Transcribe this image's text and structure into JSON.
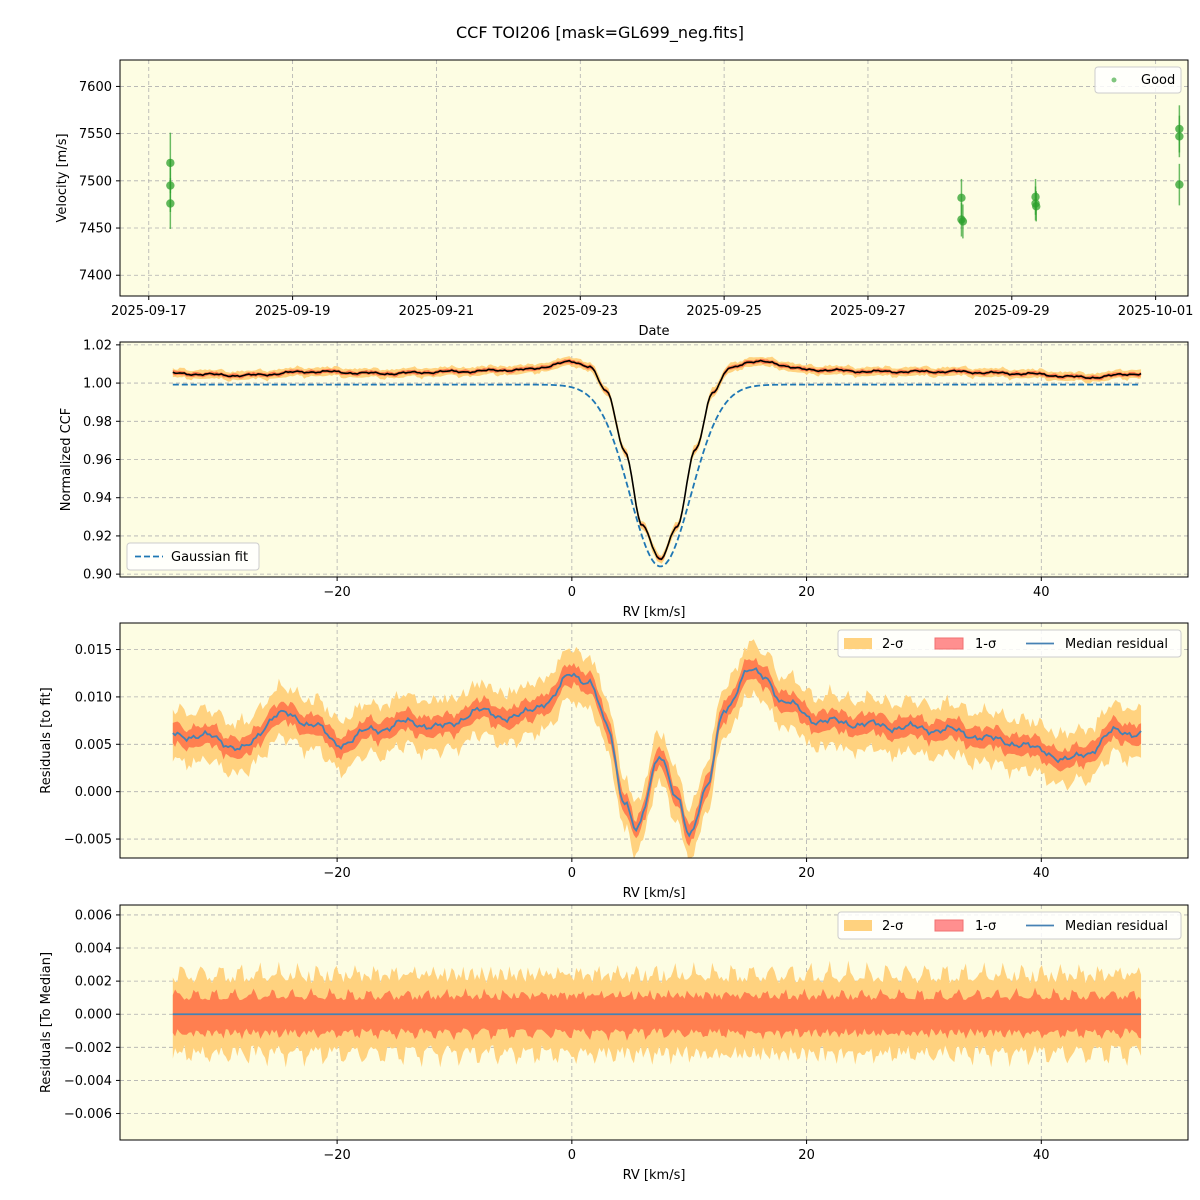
{
  "figure": {
    "title": "CCF TOI206 [mask=GL699_neg.fits]",
    "background": "#ffffff",
    "axes_facecolor": "#fdfde3"
  },
  "chart_data": [
    {
      "type": "scatter",
      "xlabel": "Date",
      "ylabel": "Velocity [m/s]",
      "x_ticks": [
        "2025-09-17",
        "2025-09-19",
        "2025-09-21",
        "2025-09-23",
        "2025-09-25",
        "2025-09-27",
        "2025-09-29",
        "2025-10-01"
      ],
      "xlim": [
        "2025-09-16.6",
        "2025-10-01.45"
      ],
      "ylim": [
        7378,
        7628
      ],
      "y_ticks": [
        7400,
        7450,
        7500,
        7550,
        7600
      ],
      "grid": true,
      "legend": {
        "position": "top-right",
        "entries": [
          "Good"
        ]
      },
      "series": [
        {
          "name": "Good",
          "color": "#2ca02c",
          "points": [
            {
              "x": "2025-09-17.30",
              "y": 7519,
              "err": 32
            },
            {
              "x": "2025-09-17.30",
              "y": 7495,
              "err": 28
            },
            {
              "x": "2025-09-17.30",
              "y": 7476,
              "err": 27
            },
            {
              "x": "2025-09-28.30",
              "y": 7482,
              "err": 20
            },
            {
              "x": "2025-09-28.30",
              "y": 7459,
              "err": 18
            },
            {
              "x": "2025-09-28.32",
              "y": 7457,
              "err": 18
            },
            {
              "x": "2025-09-29.33",
              "y": 7483,
              "err": 19
            },
            {
              "x": "2025-09-29.33",
              "y": 7476,
              "err": 18
            },
            {
              "x": "2025-09-29.34",
              "y": 7473,
              "err": 16
            },
            {
              "x": "2025-10-01.33",
              "y": 7555,
              "err": 25
            },
            {
              "x": "2025-10-01.33",
              "y": 7547,
              "err": 22
            },
            {
              "x": "2025-10-01.33",
              "y": 7496,
              "err": 22
            }
          ]
        }
      ]
    },
    {
      "type": "line",
      "xlabel": "RV [km/s]",
      "ylabel": "Normalized CCF",
      "xlim": [
        -38.5,
        52.5
      ],
      "ylim": [
        0.8985,
        1.0215
      ],
      "x_ticks": [
        -20,
        0,
        20,
        40
      ],
      "y_ticks": [
        0.9,
        0.92,
        0.94,
        0.96,
        0.98,
        1.0,
        1.02
      ],
      "y_tick_labels": [
        "0.90",
        "0.92",
        "0.94",
        "0.96",
        "0.98",
        "1.00",
        "1.02"
      ],
      "grid": true,
      "legend": {
        "position": "bottom-left",
        "entries": [
          "Gaussian fit"
        ]
      },
      "rv_range": [
        -34.0,
        48.5
      ],
      "gaussian_fit": {
        "baseline": 0.9992,
        "depth": 0.0952,
        "center": 7.55,
        "sigma": 2.6,
        "color": "#1f77b4"
      },
      "ccf_profile": {
        "x": [
          -34,
          -28,
          -22,
          -16,
          -10,
          -4,
          0,
          1.5,
          3,
          4.5,
          6,
          7.5,
          9,
          10.5,
          12,
          13.5,
          15,
          16.5,
          20,
          26,
          32,
          38,
          44,
          48.5
        ],
        "y": [
          1.005,
          1.004,
          1.006,
          1.005,
          1.006,
          1.007,
          1.011,
          1.009,
          0.995,
          0.965,
          0.925,
          0.908,
          0.925,
          0.965,
          0.995,
          1.008,
          1.011,
          1.011,
          1.007,
          1.006,
          1.006,
          1.005,
          1.003,
          1.005
        ],
        "color": "#000000"
      },
      "band_1sigma_halfwidth": 0.0012,
      "band_2sigma_halfwidth": 0.0024,
      "band_colors": {
        "two_sigma": "#ffd27f",
        "one_sigma": "#ff7f50"
      }
    },
    {
      "type": "area",
      "xlabel": "RV [km/s]",
      "ylabel": "Residuals [to fit]",
      "xlim": [
        -38.5,
        52.5
      ],
      "ylim": [
        -0.007,
        0.0178
      ],
      "x_ticks": [
        -20,
        0,
        20,
        40
      ],
      "y_ticks": [
        -0.005,
        0.0,
        0.005,
        0.01,
        0.015
      ],
      "y_tick_labels": [
        "−0.005",
        "0.000",
        "0.005",
        "0.010",
        "0.015"
      ],
      "grid": true,
      "legend": {
        "position": "top-right",
        "entries": [
          "2-σ",
          "1-σ",
          "Median residual"
        ]
      },
      "median_residual": {
        "x": [
          -34,
          -31,
          -28,
          -25,
          -22,
          -20,
          -17,
          -14,
          -11,
          -8,
          -5,
          -2,
          0,
          1.5,
          3,
          4.5,
          5.5,
          7.5,
          9,
          10,
          11.5,
          13,
          15,
          16.5,
          18,
          21,
          24,
          28,
          32,
          36,
          40,
          42,
          44,
          46.5,
          48.5
        ],
        "y": [
          0.006,
          0.0058,
          0.0045,
          0.0082,
          0.0072,
          0.005,
          0.0065,
          0.0073,
          0.0068,
          0.0085,
          0.0078,
          0.0095,
          0.0125,
          0.0115,
          0.007,
          -0.001,
          -0.0042,
          0.004,
          -0.001,
          -0.0045,
          0.0005,
          0.0085,
          0.0128,
          0.012,
          0.0095,
          0.0075,
          0.0072,
          0.0068,
          0.0065,
          0.0055,
          0.0045,
          0.0032,
          0.0042,
          0.0065,
          0.006
        ],
        "color": "#4682b4"
      },
      "band_1sigma_halfwidth": 0.0012,
      "band_2sigma_halfwidth": 0.0028,
      "band_colors": {
        "two_sigma": "#ffd27f",
        "one_sigma": "#ff7f50"
      }
    },
    {
      "type": "area",
      "xlabel": "RV [km/s]",
      "ylabel": "Residuals [To Median]",
      "xlim": [
        -38.5,
        52.5
      ],
      "ylim": [
        -0.0076,
        0.0066
      ],
      "x_ticks": [
        -20,
        0,
        20,
        40
      ],
      "y_ticks": [
        -0.006,
        -0.004,
        -0.002,
        0.0,
        0.002,
        0.004,
        0.006
      ],
      "y_tick_labels": [
        "−0.006",
        "−0.004",
        "−0.002",
        "0.000",
        "0.002",
        "0.004",
        "0.006"
      ],
      "grid": true,
      "legend": {
        "position": "top-right",
        "entries": [
          "2-σ",
          "1-σ",
          "Median residual"
        ]
      },
      "median_residual": {
        "x": [
          -34,
          48.5
        ],
        "y": [
          0,
          0
        ],
        "color": "#4682b4"
      },
      "band_1sigma_halfwidth": 0.0013,
      "band_2sigma_halfwidth": 0.0025,
      "band_colors": {
        "two_sigma": "#ffd27f",
        "one_sigma": "#ff7f50"
      }
    }
  ]
}
